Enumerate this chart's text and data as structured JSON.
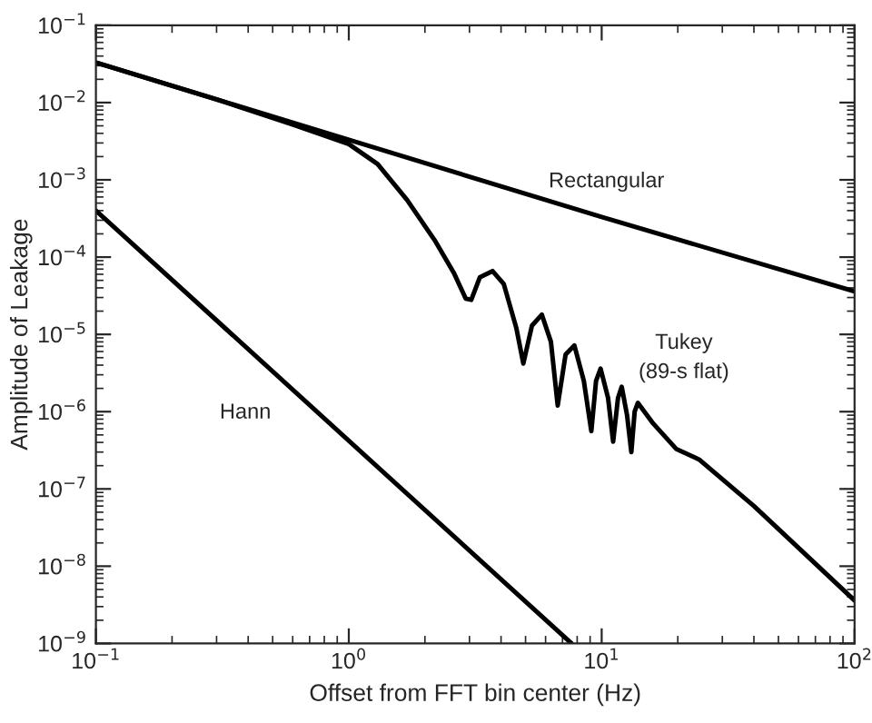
{
  "chart_data": {
    "type": "line",
    "xlabel": "Offset from FFT bin center (Hz)",
    "ylabel": "Amplitude of Leakage",
    "log": "xy",
    "grid": false,
    "marker": "none",
    "line_style": "solid",
    "xlim": [
      0.1,
      100
    ],
    "ylim": [
      1e-09,
      0.1
    ],
    "xticks": [
      {
        "value": 0.1,
        "label": "10$^{−1}$"
      },
      {
        "value": 1,
        "label": "10$^{0}$"
      },
      {
        "value": 10,
        "label": "10$^{1}$"
      },
      {
        "value": 100,
        "label": "10$^{2}$"
      }
    ],
    "yticks": [
      {
        "value": 1e-09,
        "label": "10$^{−9}$"
      },
      {
        "value": 1e-08,
        "label": "10$^{−8}$"
      },
      {
        "value": 1e-07,
        "label": "10$^{−7}$"
      },
      {
        "value": 1e-06,
        "label": "10$^{−6}$"
      },
      {
        "value": 1e-05,
        "label": "10$^{−5}$"
      },
      {
        "value": 0.0001,
        "label": "10$^{−4}$"
      },
      {
        "value": 0.001,
        "label": "10$^{−3}$"
      },
      {
        "value": 0.01,
        "label": "10$^{−2}$"
      },
      {
        "value": 0.1,
        "label": "10$^{−1}$"
      }
    ],
    "series": [
      {
        "name": "Rectangular",
        "color": "#000000",
        "x": [
          0.1,
          1,
          10,
          100
        ],
        "values": [
          0.033,
          0.0033,
          0.00033,
          3.6e-05
        ]
      },
      {
        "name": "Hann",
        "color": "#000000",
        "x": [
          0.1,
          7.6
        ],
        "values": [
          0.0004,
          1e-09
        ]
      },
      {
        "name": "Tukey\n(89-s flat)",
        "color": "#000000",
        "x": [
          0.1,
          0.3,
          0.6,
          1.0,
          1.3,
          1.7,
          2.2,
          2.6,
          2.9,
          3.05,
          3.3,
          3.7,
          4.1,
          4.6,
          4.9,
          5.3,
          5.8,
          6.3,
          6.7,
          7.2,
          7.8,
          8.5,
          9.1,
          9.5,
          9.9,
          10.6,
          11.1,
          11.6,
          12.0,
          12.6,
          13.1,
          13.5,
          13.9,
          16,
          19.7,
          24.3,
          40,
          100
        ],
        "values": [
          0.033,
          0.011,
          0.0052,
          0.0029,
          0.0016,
          0.00055,
          0.00016,
          6.3e-05,
          2.9e-05,
          2.8e-05,
          5.5e-05,
          6.6e-05,
          4.5e-05,
          1.2e-05,
          4.2e-06,
          1.3e-05,
          1.8e-05,
          8e-06,
          1.2e-06,
          5.5e-06,
          7.2e-06,
          2.5e-06,
          5.6e-07,
          2.5e-06,
          3.6e-06,
          1.5e-06,
          4.1e-07,
          1.5e-06,
          2.1e-06,
          9e-07,
          3e-07,
          1e-06,
          1.3e-06,
          7e-07,
          3.3e-07,
          2.4e-07,
          6e-08,
          3.6e-09
        ]
      }
    ]
  }
}
